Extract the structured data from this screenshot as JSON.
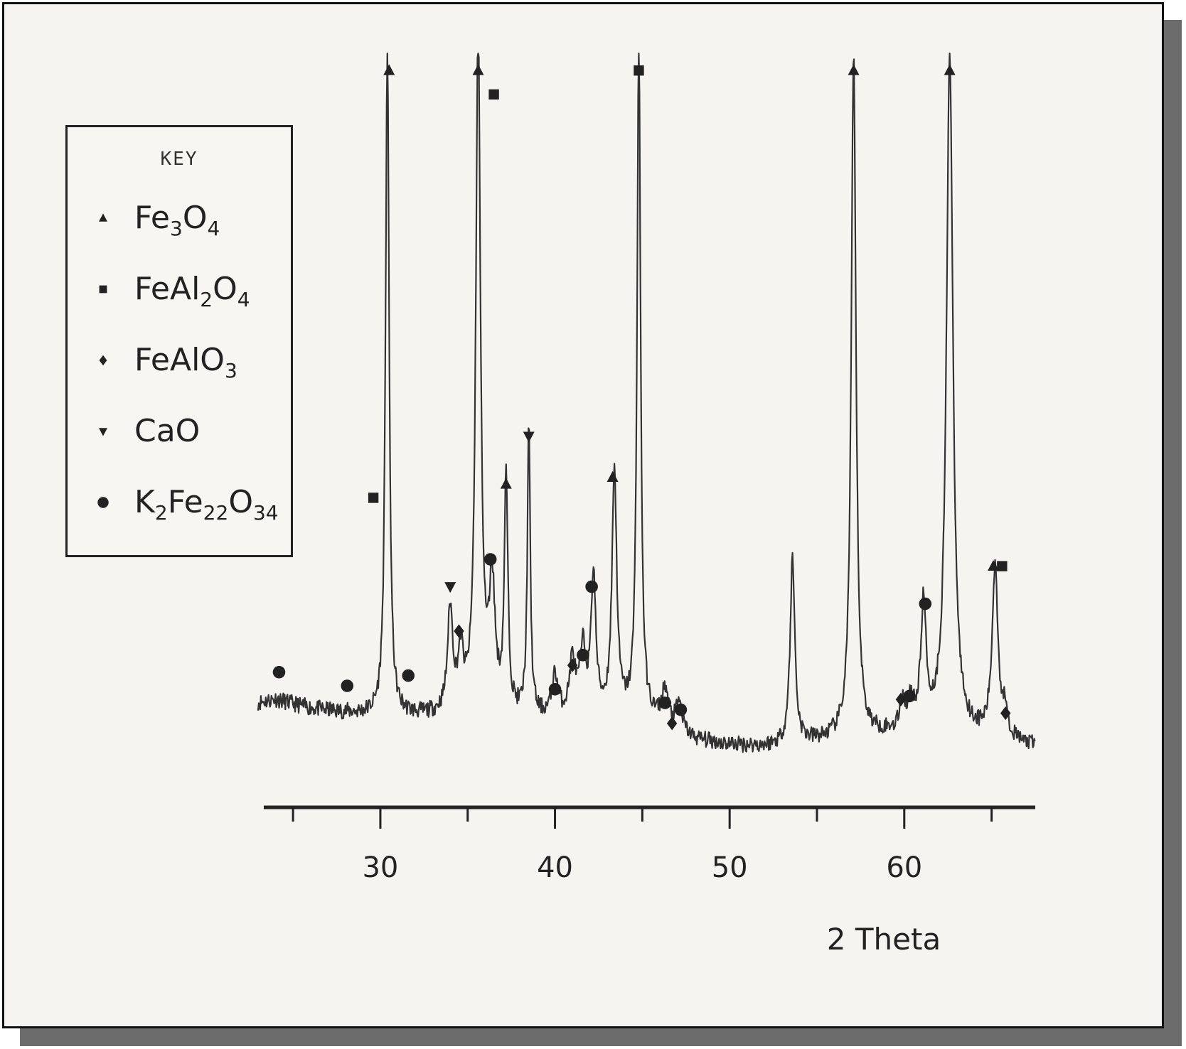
{
  "chart_data": {
    "type": "line",
    "xlabel": "2 Theta",
    "ylabel": "",
    "title": "",
    "xlim": [
      23,
      67.5
    ],
    "ylim": [
      0,
      100
    ],
    "x_ticks": [
      30,
      40,
      50,
      60
    ],
    "grid": false,
    "legend": {
      "title": "KEY",
      "placement": "top-left",
      "entries": [
        {
          "marker": "triangle",
          "label_parts": [
            [
              "Fe",
              ""
            ],
            [
              "3",
              "sub"
            ],
            [
              "O",
              ""
            ],
            [
              "4",
              "sub"
            ]
          ]
        },
        {
          "marker": "square",
          "label_parts": [
            [
              "FeAl",
              ""
            ],
            [
              "2",
              "sub"
            ],
            [
              "O",
              ""
            ],
            [
              "4",
              "sub"
            ]
          ]
        },
        {
          "marker": "diamond",
          "label_parts": [
            [
              "FeAlO",
              ""
            ],
            [
              "3",
              "sub"
            ]
          ]
        },
        {
          "marker": "inverted-triangle",
          "label_parts": [
            [
              "CaO",
              ""
            ]
          ]
        },
        {
          "marker": "circle",
          "label_parts": [
            [
              "K",
              ""
            ],
            [
              "2",
              "sub"
            ],
            [
              "Fe",
              ""
            ],
            [
              "22",
              "sub"
            ],
            [
              "O",
              ""
            ],
            [
              "34",
              "sub"
            ]
          ]
        }
      ]
    },
    "series": [
      {
        "profile": [
          [
            23.0,
            8.0
          ],
          [
            24.0,
            8.5
          ],
          [
            25.0,
            7.8
          ],
          [
            26.0,
            7.2
          ],
          [
            27.0,
            6.8
          ],
          [
            28.0,
            6.5
          ],
          [
            29.0,
            6.2
          ],
          [
            30.5,
            6.0
          ],
          [
            32.0,
            6.0
          ],
          [
            34.0,
            6.0
          ],
          [
            36.0,
            6.2
          ],
          [
            38.0,
            5.8
          ],
          [
            40.0,
            5.5
          ],
          [
            42.0,
            6.0
          ],
          [
            44.0,
            5.8
          ],
          [
            46.0,
            5.0
          ],
          [
            48.0,
            2.5
          ],
          [
            50.0,
            1.8
          ],
          [
            52.0,
            1.5
          ],
          [
            54.0,
            2.0
          ],
          [
            56.0,
            2.5
          ],
          [
            58.0,
            3.0
          ],
          [
            60.0,
            3.5
          ],
          [
            62.0,
            3.5
          ],
          [
            64.0,
            3.0
          ],
          [
            65.5,
            2.5
          ],
          [
            66.5,
            2.0
          ],
          [
            67.5,
            1.5
          ]
        ],
        "peaks": [
          {
            "x": 30.4,
            "h": 100,
            "w": 0.12
          },
          {
            "x": 34.0,
            "h": 15,
            "w": 0.18
          },
          {
            "x": 34.6,
            "h": 8,
            "w": 0.18
          },
          {
            "x": 35.6,
            "h": 100,
            "w": 0.16
          },
          {
            "x": 36.4,
            "h": 18,
            "w": 0.2
          },
          {
            "x": 37.2,
            "h": 34,
            "w": 0.12
          },
          {
            "x": 38.5,
            "h": 42,
            "w": 0.1
          },
          {
            "x": 40.0,
            "h": 6,
            "w": 0.2
          },
          {
            "x": 41.0,
            "h": 8,
            "w": 0.2
          },
          {
            "x": 41.6,
            "h": 9,
            "w": 0.2
          },
          {
            "x": 42.2,
            "h": 20,
            "w": 0.16
          },
          {
            "x": 43.4,
            "h": 36,
            "w": 0.16
          },
          {
            "x": 44.8,
            "h": 100,
            "w": 0.12
          },
          {
            "x": 46.3,
            "h": 5,
            "w": 0.2
          },
          {
            "x": 47.1,
            "h": 4,
            "w": 0.2
          },
          {
            "x": 53.6,
            "h": 27,
            "w": 0.16
          },
          {
            "x": 57.1,
            "h": 100,
            "w": 0.16
          },
          {
            "x": 59.9,
            "h": 4,
            "w": 0.18
          },
          {
            "x": 60.4,
            "h": 4,
            "w": 0.18
          },
          {
            "x": 61.1,
            "h": 18,
            "w": 0.18
          },
          {
            "x": 62.6,
            "h": 100,
            "w": 0.22
          },
          {
            "x": 65.2,
            "h": 25,
            "w": 0.2
          },
          {
            "x": 65.8,
            "h": 4,
            "w": 0.15
          }
        ]
      }
    ],
    "annotations": [
      {
        "x": 24.2,
        "y": 12.5,
        "marker": "circle"
      },
      {
        "x": 28.1,
        "y": 10.5,
        "marker": "circle"
      },
      {
        "x": 29.6,
        "y": 38.0,
        "marker": "square"
      },
      {
        "x": 30.5,
        "y": 100.5,
        "marker": "triangle"
      },
      {
        "x": 31.6,
        "y": 12.0,
        "marker": "circle"
      },
      {
        "x": 34.0,
        "y": 25.0,
        "marker": "inverted-triangle"
      },
      {
        "x": 34.5,
        "y": 18.5,
        "marker": "diamond"
      },
      {
        "x": 35.6,
        "y": 100.5,
        "marker": "triangle"
      },
      {
        "x": 36.3,
        "y": 29.0,
        "marker": "circle"
      },
      {
        "x": 36.5,
        "y": 97.0,
        "marker": "square"
      },
      {
        "x": 37.2,
        "y": 40.0,
        "marker": "triangle"
      },
      {
        "x": 38.5,
        "y": 47.0,
        "marker": "inverted-triangle"
      },
      {
        "x": 40.0,
        "y": 10.0,
        "marker": "circle"
      },
      {
        "x": 41.0,
        "y": 13.5,
        "marker": "diamond"
      },
      {
        "x": 41.6,
        "y": 15.0,
        "marker": "circle"
      },
      {
        "x": 42.1,
        "y": 25.0,
        "marker": "circle"
      },
      {
        "x": 43.3,
        "y": 41.0,
        "marker": "triangle"
      },
      {
        "x": 44.8,
        "y": 100.5,
        "marker": "square"
      },
      {
        "x": 46.3,
        "y": 8.0,
        "marker": "circle"
      },
      {
        "x": 46.7,
        "y": 5.0,
        "marker": "diamond"
      },
      {
        "x": 47.2,
        "y": 7.0,
        "marker": "circle"
      },
      {
        "x": 57.1,
        "y": 100.5,
        "marker": "triangle"
      },
      {
        "x": 59.8,
        "y": 8.5,
        "marker": "diamond"
      },
      {
        "x": 60.3,
        "y": 9.0,
        "marker": "circle"
      },
      {
        "x": 61.2,
        "y": 22.5,
        "marker": "circle"
      },
      {
        "x": 62.6,
        "y": 100.5,
        "marker": "triangle"
      },
      {
        "x": 65.1,
        "y": 28.0,
        "marker": "triangle"
      },
      {
        "x": 65.6,
        "y": 28.0,
        "marker": "square"
      },
      {
        "x": 65.8,
        "y": 6.5,
        "marker": "diamond"
      }
    ]
  }
}
